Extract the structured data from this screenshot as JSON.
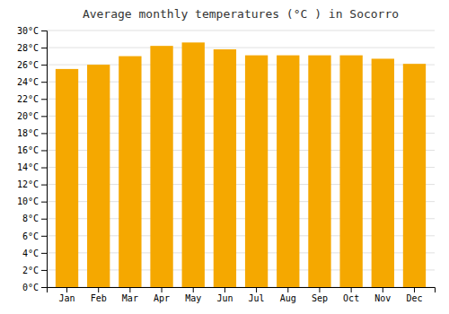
{
  "chart_data": {
    "type": "bar",
    "title": "Average monthly temperatures (°C ) in Socorro",
    "categories": [
      "Jan",
      "Feb",
      "Mar",
      "Apr",
      "May",
      "Jun",
      "Jul",
      "Aug",
      "Sep",
      "Oct",
      "Nov",
      "Dec"
    ],
    "values": [
      25.5,
      26.0,
      27.0,
      28.2,
      28.6,
      27.8,
      27.1,
      27.1,
      27.1,
      27.1,
      26.7,
      26.1
    ],
    "color": "#F5A800",
    "ylim": [
      0,
      30
    ],
    "yticks": [
      {
        "value": 0,
        "label": "0°C"
      },
      {
        "value": 2,
        "label": "2°C"
      },
      {
        "value": 4,
        "label": "4°C"
      },
      {
        "value": 6,
        "label": "6°C"
      },
      {
        "value": 8,
        "label": "8°C"
      },
      {
        "value": 10,
        "label": "10°C"
      },
      {
        "value": 12,
        "label": "12°C"
      },
      {
        "value": 14,
        "label": "14°C"
      },
      {
        "value": 16,
        "label": "16°C"
      },
      {
        "value": 18,
        "label": "18°C"
      },
      {
        "value": 20,
        "label": "20°C"
      },
      {
        "value": 22,
        "label": "22°C"
      },
      {
        "value": 24,
        "label": "24°C"
      },
      {
        "value": 26,
        "label": "26°C"
      },
      {
        "value": 28,
        "label": "28°C"
      },
      {
        "value": 30,
        "label": "30°C"
      }
    ],
    "grid": true
  }
}
